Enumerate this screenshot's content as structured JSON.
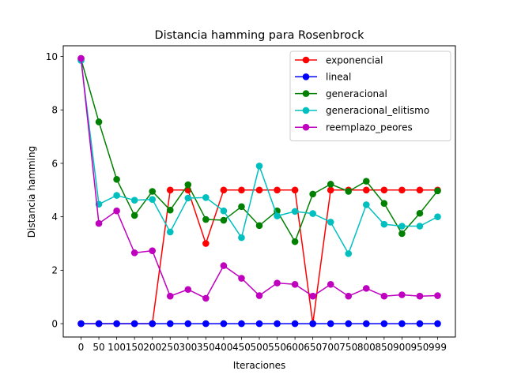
{
  "chart_data": {
    "type": "line",
    "title": "Distancia hamming para Rosenbrock",
    "xlabel": "Iteraciones",
    "ylabel": "Distancia hamming",
    "categories": [
      "0",
      "50",
      "100",
      "150",
      "200",
      "250",
      "300",
      "350",
      "400",
      "450",
      "500",
      "550",
      "600",
      "650",
      "700",
      "750",
      "800",
      "850",
      "900",
      "950",
      "999"
    ],
    "ylim": [
      -0.5,
      10.4
    ],
    "yticks": [
      0,
      2,
      4,
      6,
      8,
      10
    ],
    "grid": false,
    "legend_position": "upper right",
    "series": [
      {
        "name": "exponencial",
        "color": "#ff0000",
        "values": [
          0,
          0,
          0,
          0,
          0,
          5,
          5,
          3,
          5,
          5,
          5,
          5,
          5,
          0,
          5,
          5,
          5,
          5,
          5,
          5,
          5
        ]
      },
      {
        "name": "lineal",
        "color": "#0000ff",
        "values": [
          0,
          0,
          0,
          0,
          0,
          0,
          0,
          0,
          0,
          0,
          0,
          0,
          0,
          0,
          0,
          0,
          0,
          0,
          0,
          0,
          0
        ]
      },
      {
        "name": "generacional",
        "color": "#008000",
        "values": [
          9.9,
          7.55,
          5.4,
          4.05,
          4.95,
          4.25,
          5.2,
          3.9,
          3.87,
          4.38,
          3.67,
          4.22,
          3.07,
          4.85,
          5.22,
          4.95,
          5.33,
          4.5,
          3.37,
          4.13,
          4.97
        ]
      },
      {
        "name": "generacional_elitismo",
        "color": "#00bfbf",
        "values": [
          9.85,
          4.47,
          4.8,
          4.62,
          4.65,
          3.43,
          4.7,
          4.72,
          4.22,
          3.22,
          5.9,
          4.03,
          4.2,
          4.12,
          3.8,
          2.62,
          4.45,
          3.72,
          3.65,
          3.65,
          4.0
        ]
      },
      {
        "name": "reemplazo_peores",
        "color": "#bf00bf",
        "values": [
          9.93,
          3.75,
          4.22,
          2.65,
          2.73,
          1.03,
          1.28,
          0.95,
          2.17,
          1.7,
          1.05,
          1.52,
          1.47,
          1.03,
          1.47,
          1.03,
          1.32,
          1.03,
          1.08,
          1.03,
          1.05
        ]
      }
    ]
  }
}
